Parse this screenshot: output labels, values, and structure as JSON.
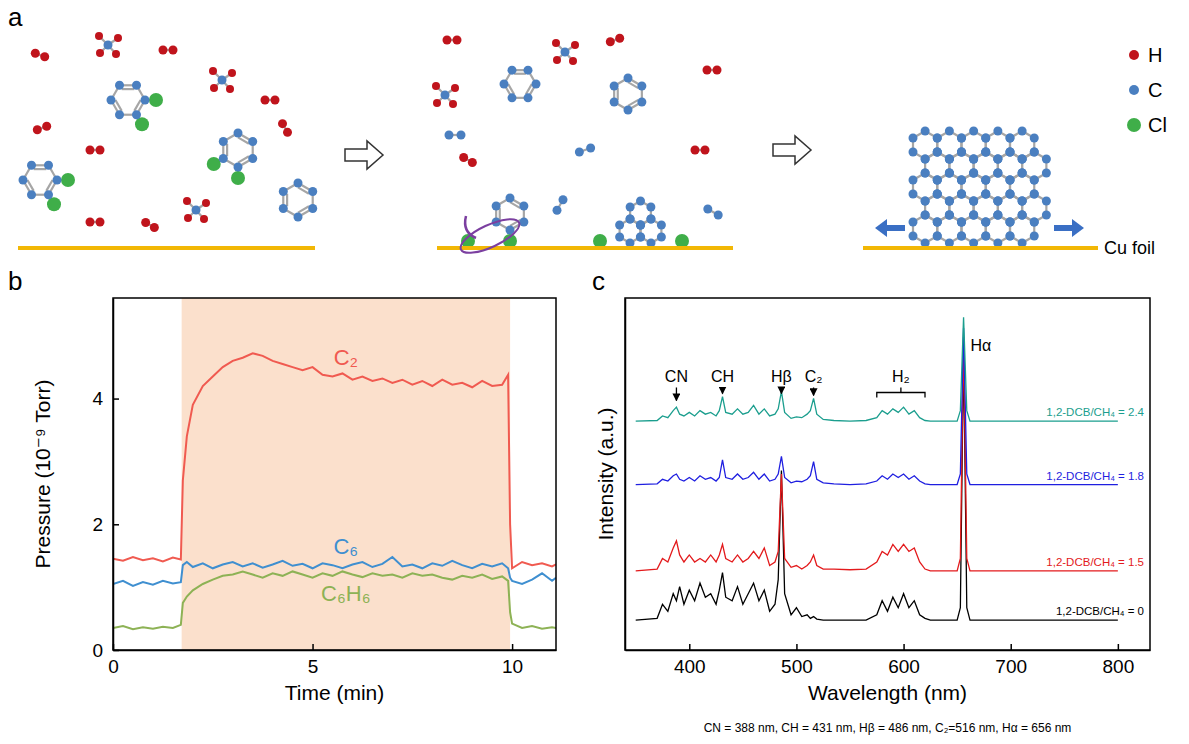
{
  "diagram": {
    "panel": "a",
    "atoms": [
      {
        "label": "H",
        "color": "#c0141c"
      },
      {
        "label": "C",
        "color": "#4a7fc0"
      },
      {
        "label": "Cl",
        "color": "#3fae49"
      }
    ],
    "substrate": "Cu foil"
  },
  "chart_data": [
    {
      "panel": "b",
      "type": "line",
      "x_label": "Time (min)",
      "y_label": "Pressure (10⁻⁹ Torr)",
      "xlim": [
        0,
        11.1
      ],
      "xticks": [
        0,
        5,
        10
      ],
      "ylim": [
        0,
        5.6
      ],
      "yticks": [
        0,
        2,
        4
      ],
      "shaded_x": [
        1.72,
        9.95
      ],
      "x": [
        0,
        0.25,
        0.5,
        0.75,
        1,
        1.25,
        1.5,
        1.7,
        1.75,
        1.85,
        2,
        2.25,
        2.5,
        2.75,
        3,
        3.25,
        3.5,
        3.75,
        4,
        4.25,
        4.5,
        4.75,
        5,
        5.25,
        5.5,
        5.75,
        6,
        6.25,
        6.5,
        6.75,
        7,
        7.25,
        7.5,
        7.75,
        8,
        8.25,
        8.5,
        8.75,
        9,
        9.25,
        9.5,
        9.75,
        9.9,
        9.95,
        10,
        10.25,
        10.5,
        10.75,
        11,
        11.1
      ],
      "series": [
        {
          "name": "C₂",
          "color": "#f05a50",
          "values": [
            1.45,
            1.42,
            1.48,
            1.43,
            1.46,
            1.41,
            1.47,
            1.44,
            2.7,
            3.4,
            3.9,
            4.2,
            4.35,
            4.5,
            4.6,
            4.65,
            4.72,
            4.68,
            4.6,
            4.55,
            4.5,
            4.45,
            4.5,
            4.38,
            4.35,
            4.4,
            4.3,
            4.35,
            4.28,
            4.32,
            4.25,
            4.3,
            4.22,
            4.28,
            4.2,
            4.3,
            4.22,
            4.25,
            4.18,
            4.28,
            4.2,
            4.22,
            4.38,
            2.0,
            1.3,
            1.4,
            1.35,
            1.38,
            1.33,
            1.36
          ]
        },
        {
          "name": "C₆",
          "color": "#3f8fd0",
          "values": [
            1.05,
            1.1,
            1.02,
            1.08,
            1.04,
            1.1,
            1.06,
            1.08,
            1.35,
            1.4,
            1.32,
            1.38,
            1.3,
            1.36,
            1.4,
            1.33,
            1.38,
            1.31,
            1.36,
            1.42,
            1.34,
            1.37,
            1.3,
            1.38,
            1.35,
            1.3,
            1.36,
            1.4,
            1.32,
            1.37,
            1.48,
            1.33,
            1.36,
            1.3,
            1.38,
            1.34,
            1.42,
            1.35,
            1.3,
            1.37,
            1.33,
            1.38,
            1.3,
            1.15,
            1.1,
            1.05,
            1.12,
            1.22,
            1.1,
            1.15
          ]
        },
        {
          "name": "C₆H₆",
          "color": "#8db255",
          "values": [
            0.35,
            0.38,
            0.33,
            0.36,
            0.34,
            0.37,
            0.35,
            0.4,
            0.75,
            0.85,
            0.95,
            1.05,
            1.12,
            1.18,
            1.2,
            1.25,
            1.2,
            1.15,
            1.22,
            1.18,
            1.25,
            1.2,
            1.15,
            1.22,
            1.18,
            1.25,
            1.2,
            1.16,
            1.22,
            1.18,
            1.2,
            1.15,
            1.22,
            1.18,
            1.2,
            1.15,
            1.12,
            1.18,
            1.15,
            1.2,
            1.13,
            1.17,
            1.1,
            0.6,
            0.42,
            0.35,
            0.38,
            0.34,
            0.36,
            0.35
          ]
        }
      ]
    },
    {
      "panel": "c",
      "type": "line",
      "x_label": "Wavelength (nm)",
      "y_label": "Intensity (a.u.)",
      "xlim": [
        340,
        830
      ],
      "xticks": [
        400,
        500,
        600,
        700,
        800
      ],
      "ylim": [
        0,
        10
      ],
      "yticks": [],
      "tick_labels": "x",
      "x": [
        350,
        370,
        375,
        380,
        385,
        388,
        391,
        395,
        400,
        405,
        410,
        415,
        420,
        425,
        428,
        431,
        434,
        440,
        445,
        450,
        455,
        460,
        465,
        470,
        475,
        480,
        483,
        486,
        489,
        495,
        500,
        505,
        510,
        513,
        516,
        519,
        525,
        535,
        550,
        565,
        575,
        580,
        585,
        590,
        595,
        600,
        605,
        610,
        615,
        620,
        625,
        640,
        650,
        653,
        656,
        659,
        662,
        680,
        800
      ],
      "series": [
        {
          "name": "1,2-DCB/CH₄ = 2.4",
          "color": "#1b9e8e",
          "values": [
            6.5,
            6.52,
            6.65,
            6.6,
            6.8,
            6.9,
            6.7,
            6.65,
            6.75,
            6.65,
            6.8,
            6.7,
            6.75,
            6.65,
            6.8,
            7.2,
            6.75,
            6.7,
            6.85,
            6.7,
            6.75,
            6.95,
            6.7,
            6.85,
            6.65,
            6.7,
            6.85,
            7.35,
            6.75,
            6.58,
            6.62,
            6.6,
            6.7,
            6.8,
            7.15,
            6.7,
            6.55,
            6.52,
            6.5,
            6.52,
            6.6,
            6.8,
            6.7,
            6.85,
            6.75,
            6.9,
            6.7,
            6.8,
            6.6,
            6.52,
            6.5,
            6.5,
            6.5,
            6.8,
            9.45,
            6.8,
            6.5,
            6.5,
            6.5
          ]
        },
        {
          "name": "1,2-DCB/CH₄ = 1.8",
          "color": "#1f1fe0",
          "values": [
            4.7,
            4.72,
            4.85,
            4.8,
            4.95,
            5.0,
            4.85,
            4.8,
            4.9,
            4.8,
            4.95,
            4.85,
            4.9,
            4.8,
            4.9,
            5.4,
            4.9,
            4.85,
            5.0,
            4.85,
            4.9,
            5.05,
            4.85,
            5.0,
            4.8,
            4.85,
            5.0,
            5.5,
            4.9,
            4.75,
            4.8,
            4.78,
            4.85,
            4.95,
            5.35,
            4.85,
            4.75,
            4.72,
            4.7,
            4.72,
            4.8,
            4.95,
            4.85,
            5.0,
            4.9,
            5.0,
            4.85,
            4.95,
            4.8,
            4.72,
            4.7,
            4.7,
            4.7,
            5.0,
            9.15,
            5.0,
            4.7,
            4.7,
            4.7
          ]
        },
        {
          "name": "1,2-DCB/CH₄ = 1.5",
          "color": "#e31a1c",
          "values": [
            2.25,
            2.3,
            2.6,
            2.5,
            2.9,
            3.1,
            2.7,
            2.5,
            2.7,
            2.5,
            2.6,
            2.5,
            2.7,
            2.5,
            2.7,
            3.0,
            2.6,
            2.5,
            2.7,
            2.5,
            2.6,
            2.8,
            2.6,
            2.9,
            2.4,
            2.5,
            2.8,
            5.0,
            2.6,
            2.35,
            2.4,
            2.3,
            2.4,
            2.5,
            2.7,
            2.4,
            2.3,
            2.3,
            2.28,
            2.3,
            2.5,
            2.8,
            2.7,
            3.0,
            2.8,
            3.0,
            2.8,
            2.9,
            2.5,
            2.3,
            2.25,
            2.25,
            2.25,
            2.6,
            8.9,
            2.6,
            2.25,
            2.25,
            2.25
          ]
        },
        {
          "name": "1,2-DCB/CH₄ = 0",
          "color": "#000000",
          "values": [
            0.85,
            0.9,
            1.3,
            1.1,
            1.6,
            1.4,
            1.8,
            1.3,
            1.7,
            1.4,
            1.9,
            1.5,
            1.6,
            1.3,
            1.7,
            2.2,
            1.5,
            1.4,
            1.8,
            1.3,
            1.6,
            1.9,
            1.4,
            1.7,
            1.1,
            1.3,
            2.0,
            5.1,
            1.6,
            1.0,
            1.2,
            0.95,
            1.0,
            0.9,
            0.95,
            0.88,
            0.85,
            0.85,
            0.85,
            0.85,
            1.0,
            1.4,
            1.1,
            1.5,
            1.2,
            1.6,
            1.2,
            1.4,
            1.0,
            0.9,
            0.85,
            0.85,
            0.85,
            1.2,
            8.6,
            1.2,
            0.85,
            0.85,
            0.85
          ]
        }
      ],
      "annotations": [
        {
          "label": "CN",
          "x": 388
        },
        {
          "label": "CH",
          "x": 431
        },
        {
          "label": "Hβ",
          "x": 486
        },
        {
          "label": "C₂",
          "x": 516
        },
        {
          "label": "H₂",
          "x": [
            575,
            620
          ]
        },
        {
          "label": "Hα",
          "x": 656
        }
      ],
      "caption": "CN = 388 nm, CH = 431 nm, Hβ = 486 nm, C₂=516 nm, Hα = 656 nm"
    }
  ]
}
